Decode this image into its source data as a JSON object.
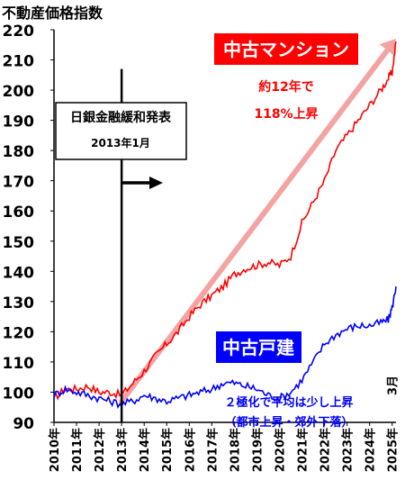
{
  "chart_data": {
    "type": "line",
    "title": "不動産価格指数",
    "ylim": [
      90,
      220
    ],
    "yticks": [
      90,
      100,
      110,
      120,
      130,
      140,
      150,
      160,
      170,
      180,
      190,
      200,
      210,
      220
    ],
    "xlabels": [
      "2010年",
      "2011年",
      "2012年",
      "2013年",
      "2014年",
      "2015年",
      "2016年",
      "2017年",
      "2018年",
      "2019年",
      "2020年",
      "2021年",
      "2022年",
      "2023年",
      "2024年",
      "2025年"
    ],
    "xlabel_suffix": "3月",
    "grid": false,
    "series": [
      {
        "name": "中古マンション",
        "color": "#ff0000",
        "x": [
          2010.0,
          2010.5,
          2011.0,
          2011.5,
          2012.0,
          2012.5,
          2013.0,
          2013.5,
          2014.0,
          2014.5,
          2015.0,
          2015.5,
          2016.0,
          2016.5,
          2017.0,
          2017.5,
          2018.0,
          2018.5,
          2019.0,
          2019.5,
          2020.0,
          2020.5,
          2021.0,
          2021.5,
          2022.0,
          2022.5,
          2023.0,
          2023.5,
          2024.0,
          2024.5,
          2024.83,
          2025.0,
          2025.17
        ],
        "y": [
          98,
          101,
          101,
          102,
          100,
          100,
          99,
          103,
          107,
          112,
          116,
          120,
          125,
          129,
          132,
          135,
          139,
          141,
          142,
          143,
          142,
          145,
          156,
          163,
          170,
          180,
          185,
          190,
          195,
          200,
          204,
          206,
          216
        ]
      },
      {
        "name": "中古戸建",
        "color": "#0000ff",
        "x": [
          2010.0,
          2010.5,
          2011.0,
          2011.5,
          2012.0,
          2012.5,
          2013.0,
          2013.5,
          2014.0,
          2014.5,
          2015.0,
          2015.5,
          2016.0,
          2016.5,
          2017.0,
          2017.5,
          2018.0,
          2018.5,
          2019.0,
          2019.5,
          2020.0,
          2020.5,
          2021.0,
          2021.5,
          2022.0,
          2022.5,
          2023.0,
          2023.5,
          2024.0,
          2024.5,
          2024.83,
          2025.0,
          2025.17
        ],
        "y": [
          99,
          101,
          100,
          99,
          98,
          97,
          96,
          97,
          99,
          98,
          97,
          98,
          99,
          100,
          101,
          103,
          103,
          102,
          101,
          99,
          98,
          100,
          104,
          110,
          116,
          119,
          121,
          122,
          122,
          123,
          124,
          128,
          135
        ]
      }
    ],
    "annotations": {
      "boj_title": "日銀金融緩和発表",
      "boj_date": "2013年1月",
      "boj_x": 2013.0,
      "condo_label": "中古マンション",
      "condo_note1": "約12年で",
      "condo_note2": "118%上昇",
      "condo_trend_x": [
        2013.0,
        2025.17
      ],
      "condo_trend_y": [
        97,
        217
      ],
      "house_label": "中古戸建",
      "house_note1": "２極化で平均は少し上昇",
      "house_note2": "（都市上昇・郊外下落）"
    },
    "colors": {
      "condo": "#ff0000",
      "house": "#0000ff",
      "trend_arrow": "#f4a3a3",
      "label_bg_condo": "#ff0000",
      "label_bg_house": "#0000ff"
    }
  }
}
